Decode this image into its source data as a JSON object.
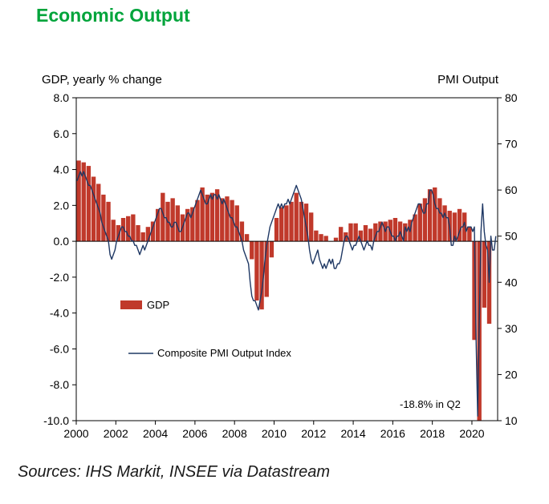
{
  "page": {
    "title": "Economic Output",
    "source_note": "Sources: IHS Markit, INSEE via Datastream"
  },
  "chart_data": {
    "type": "bar+line",
    "title": "Economic Output",
    "left_axis": {
      "title": "GDP, yearly % change",
      "min": -10,
      "max": 8,
      "ticks": [
        8,
        6,
        4,
        2,
        0,
        -2,
        -4,
        -6,
        -8,
        -10
      ]
    },
    "right_axis": {
      "title": "PMI Output",
      "min": 10,
      "max": 80,
      "ticks": [
        80,
        70,
        60,
        50,
        40,
        30,
        20,
        10
      ]
    },
    "x_axis": {
      "min": 2000,
      "max": 2021.3,
      "tick_years": [
        2000,
        2002,
        2004,
        2006,
        2008,
        2010,
        2012,
        2014,
        2016,
        2018,
        2020
      ]
    },
    "annotation": {
      "text": "-18.8% in Q2",
      "svg_x": 498,
      "svg_y": 399
    },
    "legend": [
      {
        "label": "GDP",
        "swatch": "bar"
      },
      {
        "label": "Composite PMI Output Index",
        "swatch": "line"
      }
    ],
    "series": [
      {
        "name": "GDP",
        "type": "bar",
        "axis": "left",
        "color": "#c0392b",
        "start_year": 2000,
        "period": "quarterly",
        "values": [
          4.5,
          4.4,
          4.2,
          3.6,
          3.2,
          2.6,
          2.2,
          1.2,
          0.9,
          1.3,
          1.4,
          1.5,
          0.9,
          0.5,
          0.8,
          1.1,
          1.8,
          2.7,
          2.2,
          2.4,
          2.0,
          1.5,
          1.8,
          1.9,
          2.3,
          3.0,
          2.6,
          2.7,
          2.9,
          2.4,
          2.5,
          2.3,
          2.0,
          1.1,
          0.4,
          -1.0,
          -3.3,
          -3.8,
          -3.1,
          -0.9,
          1.3,
          1.9,
          2.0,
          2.2,
          2.7,
          2.2,
          2.1,
          1.6,
          0.6,
          0.4,
          0.3,
          0.0,
          0.2,
          0.8,
          0.5,
          1.0,
          1.0,
          0.6,
          0.9,
          0.7,
          1.0,
          1.1,
          1.1,
          1.2,
          1.3,
          1.1,
          1.0,
          1.2,
          1.5,
          2.1,
          2.4,
          2.9,
          3.0,
          2.4,
          2.0,
          1.7,
          1.6,
          1.8,
          1.6,
          0.8,
          -5.5,
          -18.8,
          -3.7,
          -4.6
        ]
      },
      {
        "name": "Composite PMI Output Index",
        "type": "line",
        "axis": "right",
        "color": "#1f3864",
        "start_year": 2000,
        "period": "monthly",
        "values": [
          62,
          63,
          64,
          63,
          64,
          63,
          62,
          61,
          61,
          60,
          59,
          58,
          57,
          56,
          55,
          53,
          52,
          51,
          50,
          49,
          46,
          45,
          46,
          47,
          49,
          50,
          51,
          52,
          52,
          51,
          51,
          50,
          50,
          49,
          49,
          48,
          48,
          47,
          46,
          47,
          48,
          47,
          48,
          49,
          50,
          51,
          52,
          53,
          54,
          55,
          56,
          56,
          55,
          54,
          54,
          53,
          53,
          52,
          52,
          53,
          53,
          52,
          51,
          51,
          52,
          53,
          54,
          55,
          55,
          54,
          55,
          56,
          57,
          58,
          59,
          60,
          59,
          58,
          57,
          57,
          58,
          59,
          58,
          59,
          59,
          58,
          59,
          58,
          57,
          58,
          57,
          56,
          55,
          54,
          54,
          53,
          52,
          52,
          51,
          50,
          49,
          47,
          46,
          45,
          44,
          40,
          37,
          36,
          36,
          35,
          34,
          36,
          38,
          41,
          45,
          48,
          50,
          52,
          53,
          54,
          55,
          56,
          57,
          56,
          57,
          56,
          57,
          57,
          58,
          57,
          58,
          59,
          60,
          61,
          60,
          59,
          58,
          56,
          54,
          52,
          50,
          47,
          45,
          44,
          45,
          46,
          47,
          45,
          44,
          43,
          44,
          43,
          44,
          45,
          44,
          45,
          43,
          43,
          44,
          44,
          45,
          47,
          49,
          50,
          50,
          49,
          48,
          47,
          48,
          48,
          49,
          50,
          49,
          48,
          47,
          48,
          49,
          48,
          48,
          47,
          49,
          50,
          51,
          51,
          52,
          53,
          52,
          51,
          52,
          52,
          51,
          50,
          50,
          49,
          50,
          50,
          51,
          50,
          49,
          52,
          51,
          52,
          51,
          53,
          54,
          55,
          56,
          57,
          57,
          56,
          55,
          55,
          57,
          57,
          60,
          60,
          59,
          57,
          56,
          56,
          55,
          55,
          54,
          55,
          54,
          54,
          52,
          48,
          48,
          50,
          49,
          50,
          51,
          52,
          52,
          53,
          51,
          52,
          52,
          52,
          51,
          52,
          28,
          11,
          32,
          51,
          57,
          51,
          48,
          47,
          40,
          50,
          47,
          47,
          50
        ]
      }
    ]
  }
}
